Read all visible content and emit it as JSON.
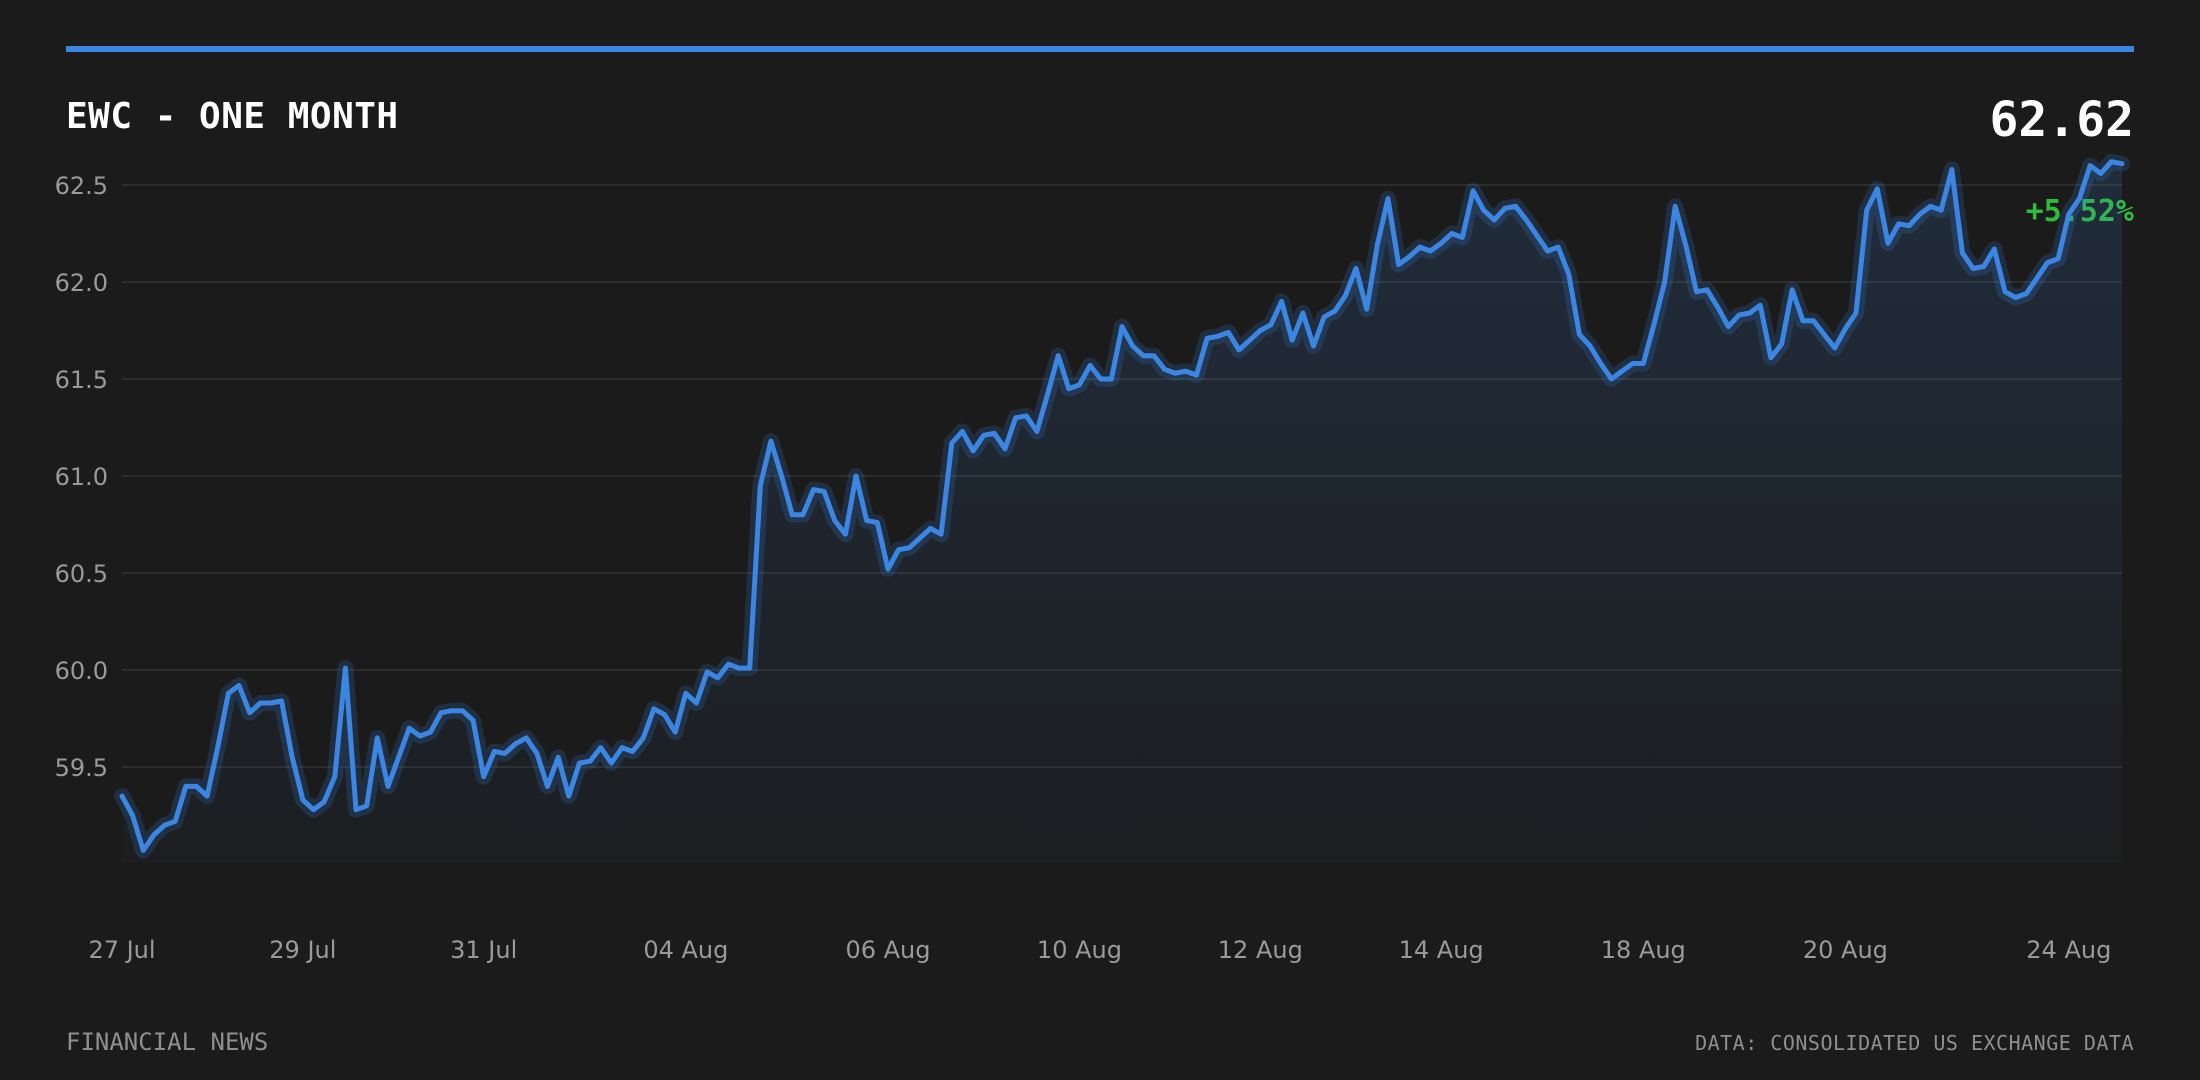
{
  "header": {
    "title": "EWC - ONE MONTH",
    "last_price": "62.62",
    "change": "+5.52%"
  },
  "footer": {
    "source_left": "FINANCIAL NEWS",
    "source_right": "DATA: CONSOLIDATED US EXCHANGE DATA"
  },
  "colors": {
    "background": "#1b1b1b",
    "accent": "#3b86e3",
    "positive": "#2ebd3b",
    "grid": "#333333",
    "tick_text": "#9a9a9a"
  },
  "chart_data": {
    "type": "area",
    "title": "EWC - ONE MONTH",
    "xlabel": "",
    "ylabel": "",
    "ylim": [
      59.07,
      62.62
    ],
    "y_ticks": [
      "59.5",
      "60.0",
      "60.5",
      "61.0",
      "61.5",
      "62.0",
      "62.5"
    ],
    "x_ticks": [
      {
        "label": "27 Jul",
        "index": 0
      },
      {
        "label": "29 Jul",
        "index": 17
      },
      {
        "label": "31 Jul",
        "index": 34
      },
      {
        "label": "04 Aug",
        "index": 53
      },
      {
        "label": "06 Aug",
        "index": 72
      },
      {
        "label": "10 Aug",
        "index": 90
      },
      {
        "label": "12 Aug",
        "index": 107
      },
      {
        "label": "14 Aug",
        "index": 124
      },
      {
        "label": "18 Aug",
        "index": 143
      },
      {
        "label": "20 Aug",
        "index": 162
      },
      {
        "label": "24 Aug",
        "index": 183
      }
    ],
    "grid": true,
    "series": [
      {
        "values": [
          59.35,
          59.25,
          59.07,
          59.15,
          59.2,
          59.22,
          59.4,
          59.4,
          59.35,
          59.6,
          59.88,
          59.92,
          59.78,
          59.83,
          59.83,
          59.84,
          59.55,
          59.33,
          59.28,
          59.32,
          59.45,
          60.01,
          59.28,
          59.3,
          59.65,
          59.4,
          59.55,
          59.7,
          59.66,
          59.68,
          59.78,
          59.79,
          59.79,
          59.74,
          59.45,
          59.58,
          59.57,
          59.62,
          59.65,
          59.57,
          59.4,
          59.55,
          59.35,
          59.52,
          59.53,
          59.6,
          59.52,
          59.6,
          59.58,
          59.65,
          59.8,
          59.77,
          59.68,
          59.88,
          59.83,
          59.99,
          59.96,
          60.03,
          60.01,
          60.01,
          60.95,
          61.18,
          61.0,
          60.8,
          60.8,
          60.93,
          60.92,
          60.77,
          60.7,
          61.0,
          60.77,
          60.76,
          60.52,
          60.62,
          60.63,
          60.68,
          60.73,
          60.7,
          61.17,
          61.23,
          61.13,
          61.21,
          61.22,
          61.14,
          61.3,
          61.31,
          61.23,
          61.42,
          61.62,
          61.45,
          61.47,
          61.57,
          61.5,
          61.5,
          61.77,
          61.67,
          61.62,
          61.62,
          61.55,
          61.53,
          61.54,
          61.52,
          61.71,
          61.72,
          61.74,
          61.65,
          61.7,
          61.75,
          61.78,
          61.9,
          61.7,
          61.84,
          61.67,
          61.82,
          61.85,
          61.93,
          62.07,
          61.86,
          62.19,
          62.43,
          62.09,
          62.13,
          62.18,
          62.16,
          62.2,
          62.25,
          62.23,
          62.47,
          62.37,
          62.32,
          62.38,
          62.39,
          62.32,
          62.24,
          62.16,
          62.18,
          62.04,
          61.73,
          61.67,
          61.58,
          61.5,
          61.54,
          61.58,
          61.58,
          61.78,
          62.0,
          62.39,
          62.19,
          61.95,
          61.96,
          61.87,
          61.77,
          61.83,
          61.84,
          61.88,
          61.61,
          61.68,
          61.96,
          61.8,
          61.8,
          61.73,
          61.66,
          61.76,
          61.84,
          62.37,
          62.48,
          62.2,
          62.3,
          62.29,
          62.35,
          62.39,
          62.37,
          62.58,
          62.15,
          62.07,
          62.08,
          62.17,
          61.95,
          61.92,
          61.94,
          62.02,
          62.1,
          62.12,
          62.35,
          62.43,
          62.6,
          62.56,
          62.62,
          62.61
        ]
      }
    ]
  }
}
